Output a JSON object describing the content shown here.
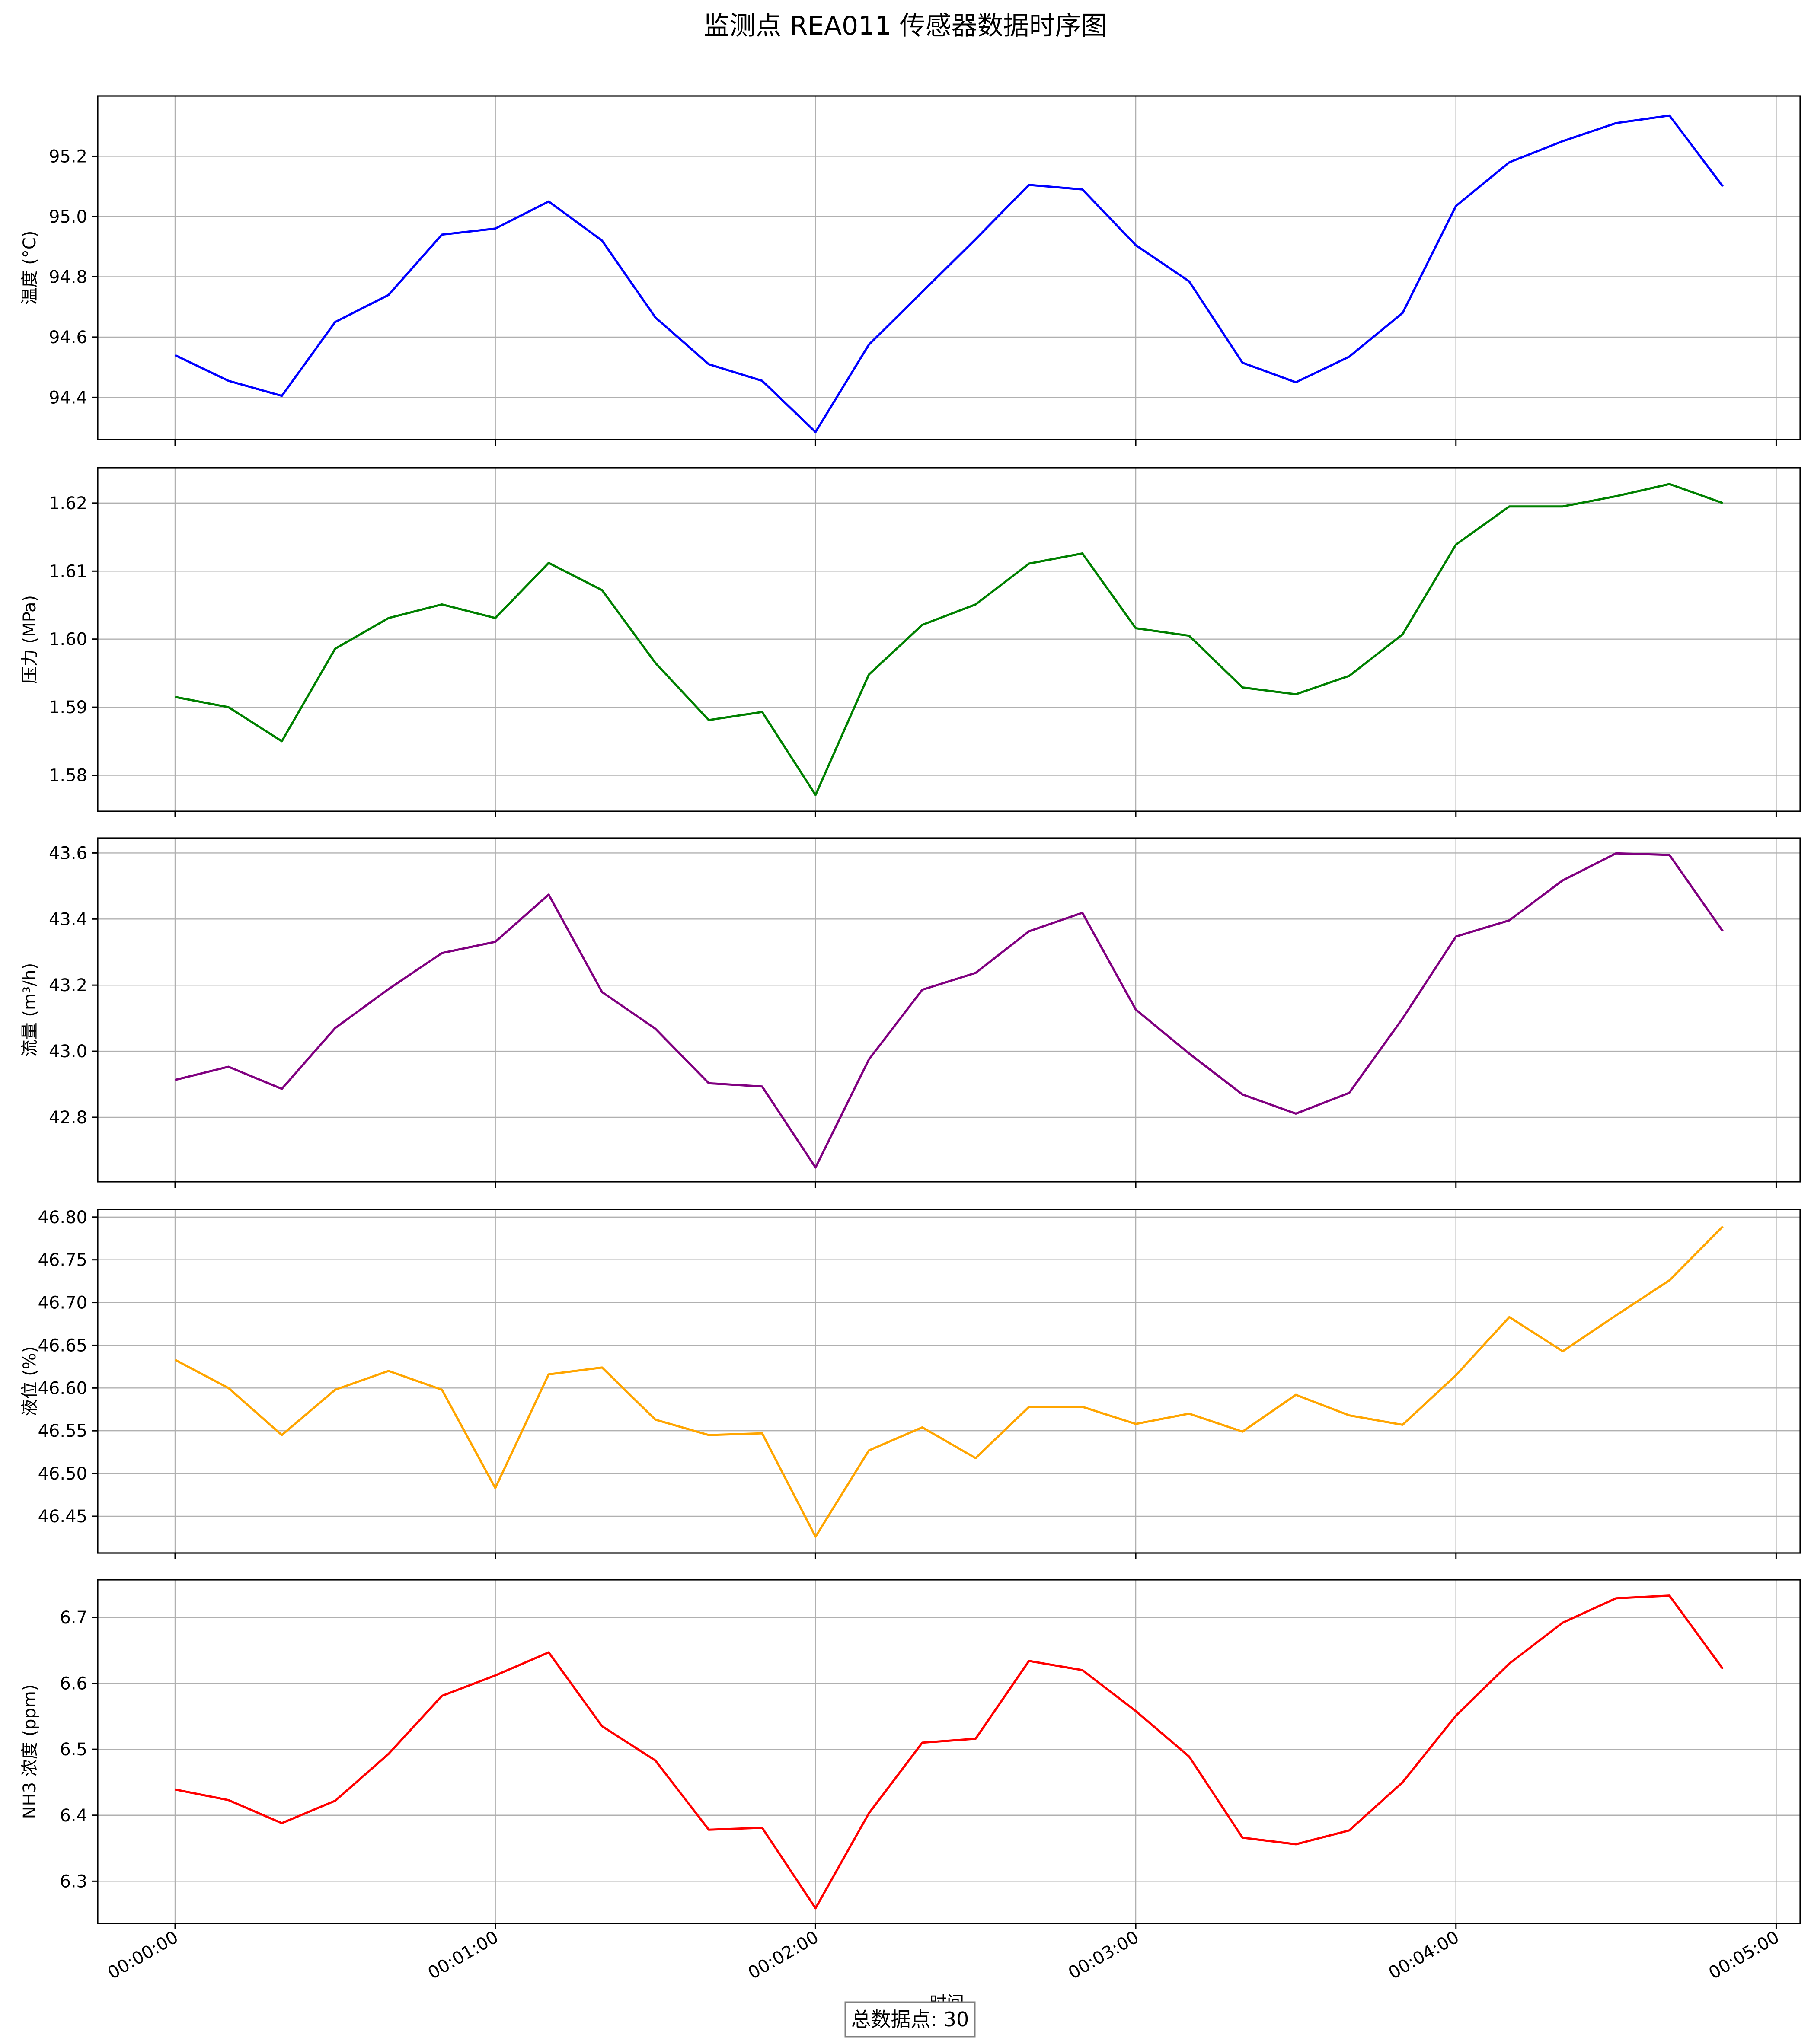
{
  "figure": {
    "title": "监测点 REA011 传感器数据时序图",
    "footer": "总数据点: 30"
  },
  "chart_data": [
    {
      "type": "line",
      "ylabel": "温度 (°C)",
      "color": "#0000ff",
      "ylim": [
        94.26,
        95.4
      ],
      "yticks": [
        94.4,
        94.6,
        94.8,
        95.0,
        95.2
      ],
      "ytick_labels": [
        "94.4",
        "94.6",
        "94.8",
        "95.0",
        "95.2"
      ],
      "values": [
        94.54,
        94.455,
        94.405,
        94.65,
        94.74,
        94.94,
        94.96,
        95.05,
        94.92,
        94.665,
        94.51,
        94.455,
        94.285,
        94.575,
        94.75,
        94.925,
        95.105,
        95.09,
        94.905,
        94.785,
        94.515,
        94.45,
        94.535,
        94.68,
        95.035,
        95.18,
        95.25,
        95.31,
        95.335,
        95.1
      ],
      "grid": true
    },
    {
      "type": "line",
      "ylabel": "压力 (MPa)",
      "color": "#008000",
      "ylim": [
        1.5747,
        1.6252
      ],
      "yticks": [
        1.58,
        1.59,
        1.6,
        1.61,
        1.62
      ],
      "ytick_labels": [
        "1.58",
        "1.59",
        "1.60",
        "1.61",
        "1.62"
      ],
      "values": [
        1.5915,
        1.59,
        1.585,
        1.5986,
        1.6031,
        1.6051,
        1.6031,
        1.6112,
        1.6072,
        1.5965,
        1.5881,
        1.5893,
        1.5771,
        1.5948,
        1.6021,
        1.6051,
        1.6111,
        1.6126,
        1.6016,
        1.6005,
        1.5929,
        1.5919,
        1.5946,
        1.6007,
        1.6139,
        1.6195,
        1.6195,
        1.621,
        1.6228,
        1.62
      ],
      "grid": true
    },
    {
      "type": "line",
      "ylabel": "流量 (m³/h)",
      "color": "#800080",
      "ylim": [
        42.605,
        43.645
      ],
      "yticks": [
        42.8,
        43.0,
        43.2,
        43.4,
        43.6
      ],
      "ytick_labels": [
        "42.8",
        "43.0",
        "43.2",
        "43.4",
        "43.6"
      ],
      "values": [
        42.913,
        42.953,
        42.886,
        43.07,
        43.188,
        43.297,
        43.331,
        43.474,
        43.179,
        43.068,
        42.903,
        42.893,
        42.648,
        42.975,
        43.186,
        43.237,
        43.363,
        43.419,
        43.126,
        42.993,
        42.869,
        42.811,
        42.874,
        43.099,
        43.347,
        43.396,
        43.517,
        43.599,
        43.594,
        43.363
      ],
      "grid": true
    },
    {
      "type": "line",
      "ylabel": "液位 (%)",
      "color": "#ffa500",
      "ylim": [
        46.407,
        46.809
      ],
      "yticks": [
        46.45,
        46.5,
        46.55,
        46.6,
        46.65,
        46.7,
        46.75,
        46.8
      ],
      "ytick_labels": [
        "46.45",
        "46.50",
        "46.55",
        "46.60",
        "46.65",
        "46.70",
        "46.75",
        "46.80"
      ],
      "values": [
        46.633,
        46.6,
        46.545,
        46.598,
        46.62,
        46.598,
        46.483,
        46.616,
        46.624,
        46.563,
        46.545,
        46.547,
        46.426,
        46.527,
        46.554,
        46.518,
        46.578,
        46.578,
        46.558,
        46.57,
        46.549,
        46.592,
        46.568,
        46.557,
        46.615,
        46.683,
        46.643,
        46.685,
        46.726,
        46.789
      ],
      "grid": true
    },
    {
      "type": "line",
      "ylabel": "NH3 浓度 (ppm)",
      "color": "#ff0000",
      "ylim": [
        6.236,
        6.757
      ],
      "yticks": [
        6.3,
        6.4,
        6.5,
        6.6,
        6.7
      ],
      "ytick_labels": [
        "6.3",
        "6.4",
        "6.5",
        "6.6",
        "6.7"
      ],
      "values": [
        6.439,
        6.423,
        6.388,
        6.422,
        6.493,
        6.581,
        6.612,
        6.647,
        6.535,
        6.483,
        6.378,
        6.381,
        6.259,
        6.403,
        6.51,
        6.516,
        6.634,
        6.62,
        6.558,
        6.489,
        6.366,
        6.356,
        6.377,
        6.45,
        6.551,
        6.63,
        6.692,
        6.729,
        6.733,
        6.622
      ],
      "grid": true
    }
  ],
  "x_axis": {
    "label": "时间",
    "times": [
      "00:00:00",
      "00:00:10",
      "00:00:20",
      "00:00:30",
      "00:00:40",
      "00:00:50",
      "00:01:00",
      "00:01:10",
      "00:01:20",
      "00:01:30",
      "00:01:40",
      "00:01:50",
      "00:02:00",
      "00:02:10",
      "00:02:20",
      "00:02:30",
      "00:02:40",
      "00:02:50",
      "00:03:00",
      "00:03:10",
      "00:03:20",
      "00:03:30",
      "00:03:40",
      "00:03:50",
      "00:04:00",
      "00:04:10",
      "00:04:20",
      "00:04:30",
      "00:04:40",
      "00:04:50"
    ],
    "tick_labels": [
      "00:00:00",
      "00:01:00",
      "00:02:00",
      "00:03:00",
      "00:04:00",
      "00:05:00"
    ],
    "tick_seconds": [
      0,
      60,
      120,
      180,
      240,
      300
    ],
    "xlim_seconds": [
      -14.5,
      304.5
    ]
  }
}
